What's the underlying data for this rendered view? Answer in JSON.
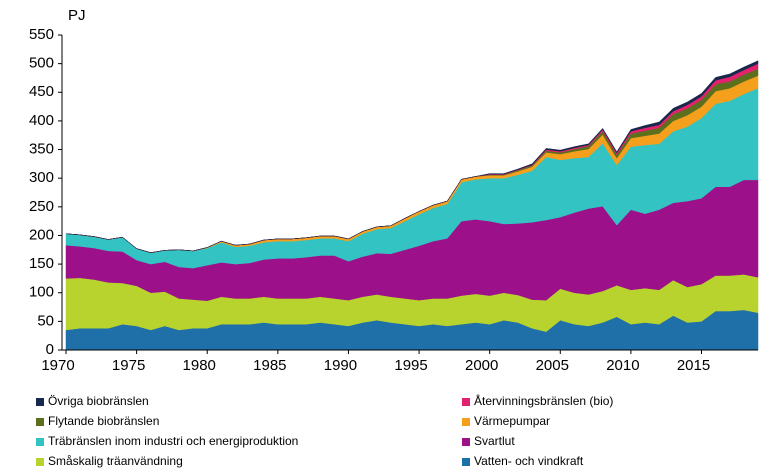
{
  "chart_data": {
    "type": "stacked-area",
    "ylabel": "PJ",
    "x": [
      1970,
      1971,
      1972,
      1973,
      1974,
      1975,
      1976,
      1977,
      1978,
      1979,
      1980,
      1981,
      1982,
      1983,
      1984,
      1985,
      1986,
      1987,
      1988,
      1989,
      1990,
      1991,
      1992,
      1993,
      1994,
      1995,
      1996,
      1997,
      1998,
      1999,
      2000,
      2001,
      2002,
      2003,
      2004,
      2005,
      2006,
      2007,
      2008,
      2009,
      2010,
      2011,
      2012,
      2013,
      2014,
      2015,
      2016,
      2017,
      2018,
      2019
    ],
    "xlim": [
      1970,
      2019
    ],
    "xticks": [
      1970,
      1975,
      1980,
      1985,
      1990,
      1995,
      2000,
      2005,
      2010,
      2015
    ],
    "ylim": [
      0,
      550
    ],
    "yticks": [
      0,
      50,
      100,
      150,
      200,
      250,
      300,
      350,
      400,
      450,
      500,
      550
    ],
    "grid": false,
    "series": [
      {
        "name": "Vatten- och vindkraft",
        "color": "#1f6fa8",
        "values": [
          35,
          38,
          38,
          38,
          45,
          42,
          35,
          42,
          35,
          38,
          38,
          45,
          45,
          45,
          48,
          45,
          45,
          45,
          48,
          45,
          42,
          48,
          52,
          48,
          45,
          42,
          45,
          42,
          45,
          48,
          45,
          52,
          48,
          38,
          32,
          52,
          45,
          42,
          48,
          58,
          45,
          48,
          45,
          60,
          48,
          50,
          68,
          68,
          70,
          65
        ]
      },
      {
        "name": "Småskalig träanvändning",
        "color": "#b8d22e",
        "values": [
          90,
          88,
          85,
          80,
          72,
          70,
          65,
          60,
          55,
          50,
          48,
          48,
          45,
          45,
          45,
          45,
          45,
          45,
          45,
          45,
          45,
          45,
          45,
          45,
          45,
          45,
          45,
          48,
          50,
          50,
          50,
          48,
          48,
          50,
          55,
          55,
          55,
          55,
          55,
          55,
          60,
          60,
          60,
          62,
          62,
          65,
          62,
          62,
          62,
          62
        ]
      },
      {
        "name": "Svartlut",
        "color": "#9c1089",
        "values": [
          58,
          55,
          55,
          55,
          55,
          45,
          50,
          52,
          55,
          55,
          62,
          60,
          60,
          62,
          65,
          70,
          70,
          72,
          72,
          75,
          68,
          70,
          72,
          75,
          85,
          95,
          100,
          105,
          130,
          130,
          130,
          120,
          125,
          135,
          140,
          125,
          140,
          150,
          148,
          105,
          140,
          130,
          140,
          135,
          150,
          150,
          155,
          155,
          165,
          170
        ]
      },
      {
        "name": "Träbränslen inom industri och energiproduktion",
        "color": "#33c3c3",
        "values": [
          20,
          20,
          20,
          20,
          25,
          20,
          20,
          20,
          30,
          30,
          30,
          35,
          30,
          30,
          30,
          30,
          30,
          30,
          30,
          30,
          35,
          40,
          42,
          45,
          50,
          55,
          58,
          60,
          68,
          70,
          75,
          80,
          85,
          90,
          110,
          100,
          95,
          90,
          110,
          105,
          110,
          120,
          115,
          125,
          130,
          140,
          145,
          150,
          150,
          160
        ]
      },
      {
        "name": "Värmepumpar",
        "color": "#f5a01c",
        "values": [
          0,
          0,
          0,
          0,
          0,
          0,
          0,
          0,
          0,
          0,
          1,
          2,
          3,
          3,
          4,
          4,
          4,
          4,
          4,
          4,
          4,
          4,
          4,
          4,
          5,
          5,
          5,
          5,
          5,
          5,
          5,
          5,
          6,
          7,
          8,
          10,
          12,
          14,
          15,
          12,
          15,
          16,
          18,
          18,
          20,
          20,
          22,
          22,
          22,
          22
        ]
      },
      {
        "name": "Flytande biobränslen",
        "color": "#5b6f1c",
        "values": [
          0,
          0,
          0,
          0,
          0,
          0,
          0,
          0,
          0,
          0,
          0,
          0,
          0,
          0,
          0,
          0,
          0,
          0,
          0,
          0,
          0,
          0,
          0,
          0,
          0,
          0,
          0,
          0,
          0,
          0,
          1,
          1,
          2,
          2,
          3,
          3,
          4,
          5,
          6,
          6,
          8,
          9,
          10,
          12,
          12,
          12,
          12,
          12,
          12,
          12
        ]
      },
      {
        "name": "Återvinningsbränslen (bio)",
        "color": "#e3216f",
        "values": [
          0,
          0,
          0,
          0,
          0,
          0,
          0,
          0,
          0,
          0,
          0,
          0,
          0,
          0,
          0,
          0,
          0,
          0,
          0,
          0,
          0,
          0,
          0,
          0,
          0,
          0,
          0,
          0,
          0,
          0,
          1,
          1,
          1,
          1,
          2,
          2,
          2,
          2,
          3,
          3,
          4,
          5,
          5,
          5,
          6,
          6,
          7,
          8,
          8,
          9
        ]
      },
      {
        "name": "Övriga biobränslen",
        "color": "#17284a",
        "values": [
          0,
          0,
          0,
          0,
          0,
          0,
          0,
          0,
          0,
          0,
          0,
          0,
          0,
          0,
          0,
          0,
          0,
          0,
          0,
          0,
          0,
          0,
          0,
          0,
          0,
          0,
          0,
          0,
          0,
          0,
          1,
          1,
          1,
          2,
          2,
          2,
          2,
          2,
          2,
          2,
          3,
          4,
          5,
          5,
          5,
          5,
          5,
          5,
          5,
          5
        ]
      }
    ]
  }
}
